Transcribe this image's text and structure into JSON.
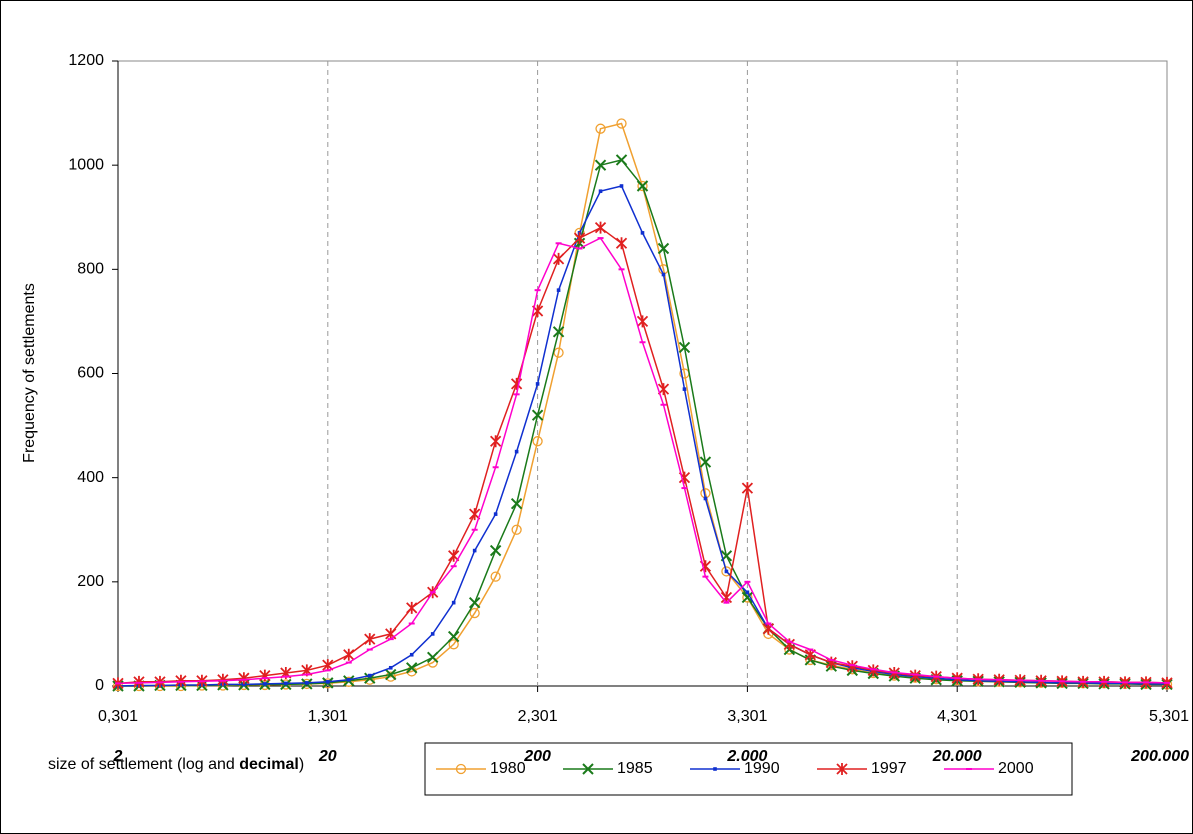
{
  "chart_data": {
    "type": "line",
    "y_label": "Frequency of settlements",
    "x_label_parts": [
      "size of settlement (log and ",
      "decimal",
      ")"
    ],
    "x": [
      0.301,
      0.401,
      0.501,
      0.601,
      0.701,
      0.801,
      0.901,
      1.001,
      1.101,
      1.201,
      1.301,
      1.401,
      1.501,
      1.601,
      1.701,
      1.801,
      1.901,
      2.001,
      2.101,
      2.201,
      2.301,
      2.401,
      2.501,
      2.601,
      2.701,
      2.801,
      2.901,
      3.001,
      3.101,
      3.201,
      3.301,
      3.401,
      3.501,
      3.601,
      3.701,
      3.801,
      3.901,
      4.001,
      4.101,
      4.201,
      4.301,
      4.401,
      4.501,
      4.601,
      4.701,
      4.801,
      4.901,
      5.001,
      5.101,
      5.201,
      5.301
    ],
    "series": [
      {
        "name": "1980",
        "color": "#f0a030",
        "marker": "circle",
        "values": [
          0,
          0,
          0,
          0,
          1,
          1,
          2,
          2,
          3,
          4,
          5,
          8,
          12,
          18,
          28,
          45,
          80,
          140,
          210,
          300,
          470,
          640,
          870,
          1070,
          1080,
          960,
          800,
          600,
          370,
          220,
          170,
          100,
          70,
          50,
          40,
          32,
          25,
          20,
          16,
          13,
          11,
          9,
          8,
          7,
          6,
          6,
          5,
          5,
          4,
          4,
          3
        ]
      },
      {
        "name": "1985",
        "color": "#1a7a1a",
        "marker": "x",
        "values": [
          0,
          0,
          1,
          1,
          1,
          2,
          2,
          3,
          3,
          4,
          6,
          10,
          15,
          22,
          35,
          55,
          95,
          160,
          260,
          350,
          520,
          680,
          850,
          1000,
          1010,
          960,
          840,
          650,
          430,
          250,
          170,
          110,
          70,
          50,
          38,
          30,
          24,
          19,
          15,
          12,
          10,
          9,
          8,
          7,
          6,
          5,
          5,
          4,
          4,
          3,
          3
        ]
      },
      {
        "name": "1990",
        "color": "#1030d0",
        "marker": "square",
        "values": [
          0,
          1,
          1,
          2,
          2,
          3,
          3,
          4,
          5,
          6,
          8,
          12,
          20,
          35,
          60,
          100,
          160,
          260,
          330,
          450,
          580,
          760,
          870,
          950,
          960,
          870,
          790,
          570,
          360,
          220,
          180,
          110,
          80,
          60,
          45,
          35,
          28,
          22,
          18,
          15,
          12,
          10,
          9,
          8,
          7,
          6,
          6,
          5,
          5,
          4,
          4
        ]
      },
      {
        "name": "1997",
        "color": "#e02020",
        "marker": "star",
        "values": [
          5,
          8,
          8,
          10,
          10,
          12,
          15,
          20,
          25,
          30,
          40,
          60,
          90,
          100,
          150,
          180,
          250,
          330,
          470,
          580,
          720,
          820,
          860,
          880,
          850,
          700,
          570,
          400,
          230,
          170,
          380,
          110,
          80,
          60,
          45,
          38,
          30,
          25,
          20,
          18,
          15,
          13,
          12,
          11,
          10,
          9,
          8,
          8,
          7,
          7,
          6
        ]
      },
      {
        "name": "2000",
        "color": "#ff00cc",
        "marker": "dash",
        "values": [
          5,
          6,
          7,
          8,
          9,
          10,
          12,
          15,
          18,
          22,
          30,
          45,
          70,
          90,
          120,
          180,
          230,
          300,
          420,
          560,
          760,
          850,
          840,
          860,
          800,
          660,
          540,
          380,
          210,
          160,
          200,
          120,
          85,
          70,
          50,
          40,
          32,
          26,
          22,
          18,
          15,
          13,
          12,
          11,
          10,
          9,
          8,
          8,
          7,
          7,
          6
        ]
      }
    ],
    "xlim": [
      0.301,
      5.301
    ],
    "xticks": [
      {
        "value": 0.301,
        "label": "0,301"
      },
      {
        "value": 1.301,
        "label": "1,301"
      },
      {
        "value": 2.301,
        "label": "2,301"
      },
      {
        "value": 3.301,
        "label": "3,301"
      },
      {
        "value": 4.301,
        "label": "4,301"
      },
      {
        "value": 5.301,
        "label": "5,301"
      }
    ],
    "xtick_decimal_labels": [
      "2",
      "20",
      "200",
      "2.000",
      "20.000",
      "200.000"
    ],
    "ylim": [
      0,
      1200
    ],
    "yticks": [
      0,
      200,
      400,
      600,
      800,
      1000,
      1200
    ],
    "x_grid": true
  }
}
